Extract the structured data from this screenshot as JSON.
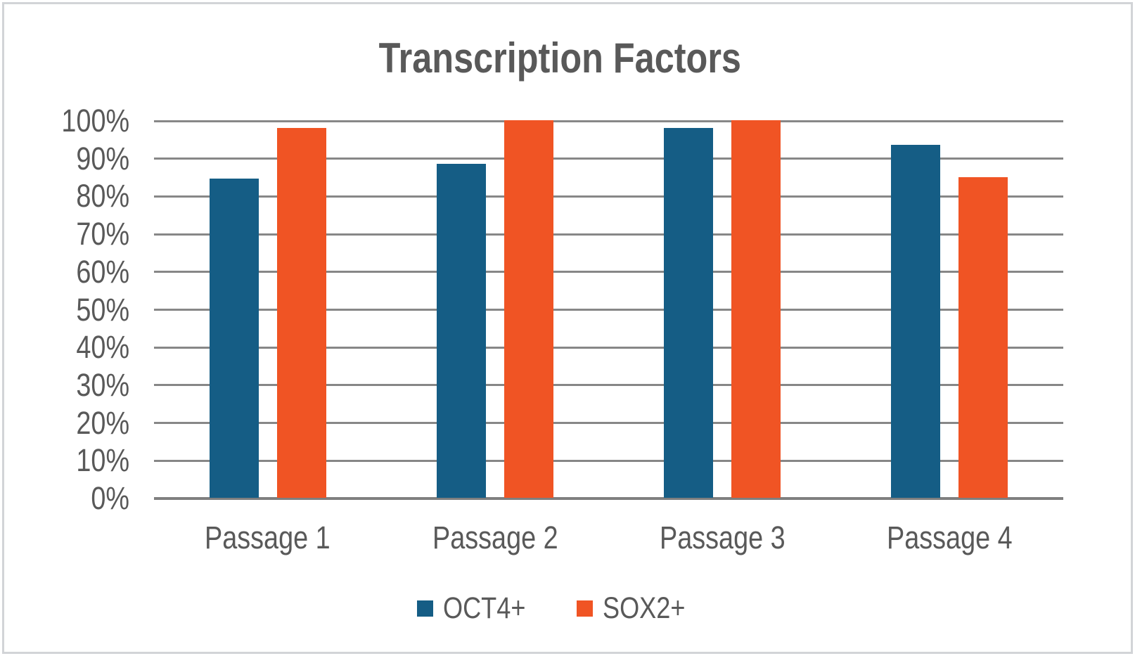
{
  "window": {
    "background": "#ffffff",
    "frame_border_color": "#d2d4d7"
  },
  "chart_data": {
    "type": "bar",
    "title": "Transcription Factors",
    "categories": [
      "Passage 1",
      "Passage 2",
      "Passage 3",
      "Passage 4"
    ],
    "series": [
      {
        "name": "OCT4+",
        "color": "#155D85",
        "values": [
          84.5,
          88.5,
          98,
          93.5
        ]
      },
      {
        "name": "SOX2+",
        "color": "#F05424",
        "values": [
          98,
          100,
          100,
          85
        ]
      }
    ],
    "xlabel": "",
    "ylabel": "",
    "ylim": [
      0,
      100
    ],
    "y_tick_interval": 10,
    "y_ticks": [
      "0%",
      "10%",
      "20%",
      "30%",
      "40%",
      "50%",
      "60%",
      "70%",
      "80%",
      "90%",
      "100%"
    ],
    "grid": true,
    "gridline_color": "#878787",
    "axis_line_color": "#7f7f7f",
    "text_color": "#595959",
    "legend_position": "bottom",
    "legend_entries": [
      "OCT4+",
      "SOX2+"
    ]
  }
}
